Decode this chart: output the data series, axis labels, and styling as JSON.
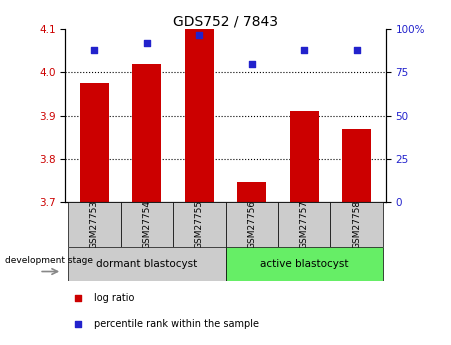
{
  "title": "GDS752 / 7843",
  "categories": [
    "GSM27753",
    "GSM27754",
    "GSM27755",
    "GSM27756",
    "GSM27757",
    "GSM27758"
  ],
  "log_ratio": [
    3.975,
    4.02,
    4.1,
    3.745,
    3.91,
    3.87
  ],
  "percentile_rank": [
    88,
    92,
    97,
    80,
    88,
    88
  ],
  "ylim_left": [
    3.7,
    4.1
  ],
  "ylim_right": [
    0,
    100
  ],
  "yticks_left": [
    3.7,
    3.8,
    3.9,
    4.0,
    4.1
  ],
  "yticks_right": [
    0,
    25,
    50,
    75,
    100
  ],
  "bar_color": "#cc0000",
  "dot_color": "#2222cc",
  "bar_base": 3.7,
  "groups": [
    {
      "label": "dormant blastocyst",
      "indices": [
        0,
        1,
        2
      ],
      "color": "#cccccc"
    },
    {
      "label": "active blastocyst",
      "indices": [
        3,
        4,
        5
      ],
      "color": "#66ee66"
    }
  ],
  "group_label": "development stage",
  "legend_items": [
    {
      "label": "log ratio",
      "color": "#cc0000"
    },
    {
      "label": "percentile rank within the sample",
      "color": "#2222cc"
    }
  ],
  "background_color": "#ffffff",
  "plot_bg_color": "#ffffff",
  "title_fontsize": 10,
  "tick_fontsize": 7.5,
  "bar_width": 0.55,
  "grid_yticks": [
    3.8,
    3.9,
    4.0
  ],
  "xlim": [
    -0.55,
    5.55
  ]
}
